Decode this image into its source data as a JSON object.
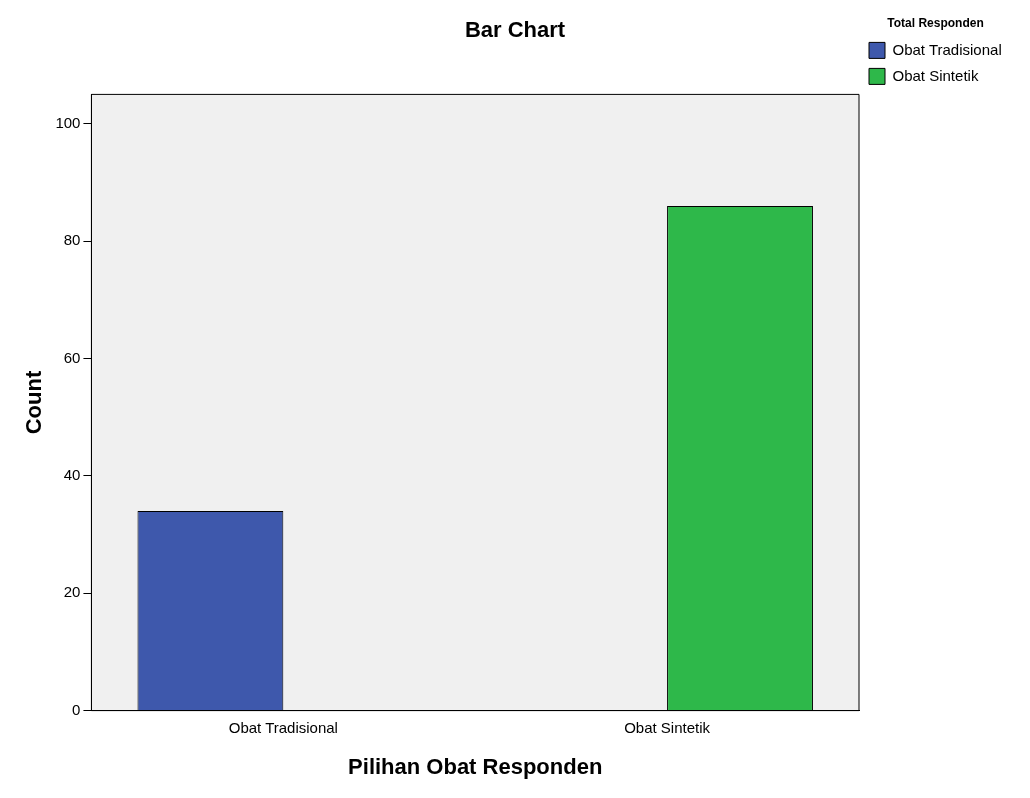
{
  "chart_data": {
    "type": "bar",
    "title": "Bar Chart",
    "xlabel": "Pilihan Obat Responden",
    "ylabel": "Count",
    "legend_title": "Total Responden",
    "categories": [
      "Obat Tradisional",
      "Obat Sintetik"
    ],
    "series": [
      {
        "name": "Obat Tradisional",
        "color": "#3e58ac",
        "values": [
          34,
          null
        ]
      },
      {
        "name": "Obat Sintetik",
        "color": "#2eb84a",
        "values": [
          null,
          86
        ]
      }
    ],
    "ylim": [
      0,
      105
    ],
    "yticks": [
      0,
      20,
      40,
      60,
      80,
      100
    ],
    "grid": false,
    "legend": "right"
  }
}
